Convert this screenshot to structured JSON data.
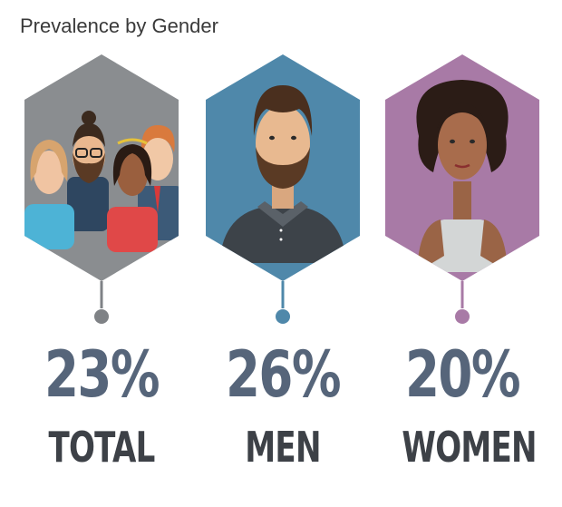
{
  "title": "Prevalence by Gender",
  "groups": [
    {
      "label": "TOTAL",
      "percent": "23%",
      "color": "#8a8d90"
    },
    {
      "label": "MEN",
      "percent": "26%",
      "color": "#4f88aa"
    },
    {
      "label": "WOMEN",
      "percent": "20%",
      "color": "#a87aa6"
    }
  ]
}
